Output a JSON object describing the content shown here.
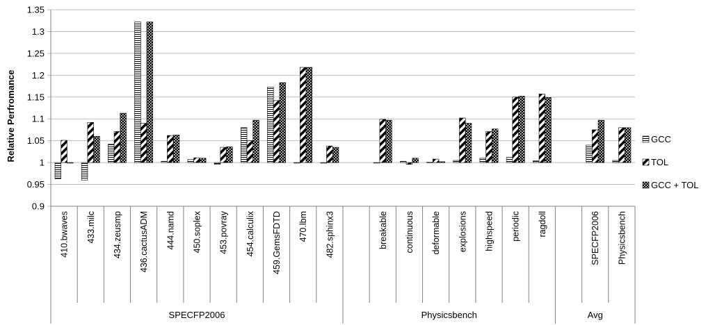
{
  "chart_data": {
    "type": "bar",
    "title": "",
    "xlabel": "",
    "ylabel": "Relative Perfromance",
    "ylim": [
      0.9,
      1.35
    ],
    "yticks": [
      "0.9",
      "0.95",
      "1",
      "1.05",
      "1.1",
      "1.15",
      "1.2",
      "1.25",
      "1.3",
      "1.35"
    ],
    "grid": true,
    "legend_position": "right",
    "categories": [
      "410.bwaves",
      "433.milc",
      "434.zeusmp",
      "436.cactusADM",
      "444.namd",
      "450.soplex",
      "453.povray",
      "454.calculix",
      "459.GemsFDTD",
      "470.lbm",
      "482.sphinx3",
      "",
      "breakable",
      "continuous",
      "deformable",
      "explosions",
      "highspeed",
      "periodic",
      "ragdoll",
      "",
      "SPECFP2006",
      "Physicsbench"
    ],
    "groups": [
      {
        "label": "SPECFP2006",
        "start": 0,
        "end": 11
      },
      {
        "label": "Physicsbench",
        "start": 11,
        "end": 19
      },
      {
        "label": "Avg",
        "start": 19,
        "end": 22
      }
    ],
    "series": [
      {
        "name": "GCC",
        "pattern": "horizontal",
        "values": [
          0.963,
          0.96,
          1.042,
          1.322,
          1.003,
          1.007,
          0.996,
          1.08,
          1.173,
          1.0,
          1.0,
          null,
          1.0,
          1.003,
          1.001,
          1.005,
          1.01,
          1.012,
          1.004,
          null,
          1.04,
          1.005
        ]
      },
      {
        "name": "TOL",
        "pattern": "diagonal",
        "values": [
          1.051,
          1.092,
          1.071,
          1.09,
          1.062,
          1.011,
          1.035,
          1.05,
          1.142,
          1.218,
          1.038,
          null,
          1.099,
          0.996,
          1.008,
          1.102,
          1.071,
          1.15,
          1.157,
          null,
          1.075,
          1.08
        ]
      },
      {
        "name": "GCC + TOL",
        "pattern": "dots",
        "values": [
          1.0,
          1.06,
          1.113,
          1.322,
          1.063,
          1.01,
          1.036,
          1.097,
          1.183,
          1.218,
          1.035,
          null,
          1.097,
          1.01,
          1.002,
          1.09,
          1.077,
          1.152,
          1.149,
          null,
          1.097,
          1.08
        ]
      }
    ],
    "colors": {
      "bar_stroke": "#000000",
      "grid": "#bdbdbd",
      "axis": "#7f7f7f"
    }
  }
}
